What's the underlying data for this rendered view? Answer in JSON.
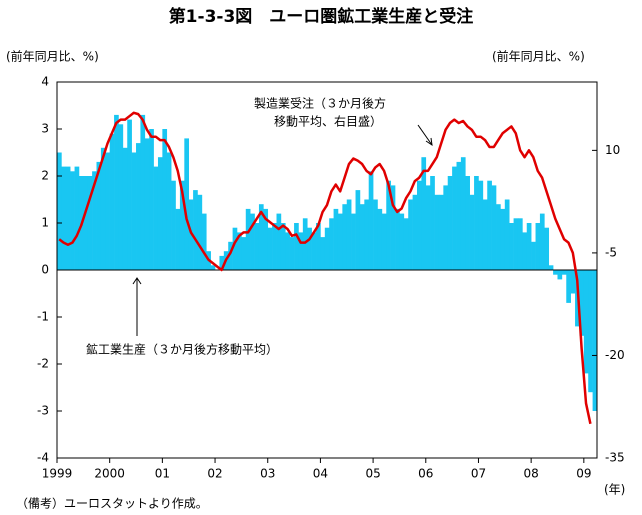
{
  "chart_data": {
    "type": "bar_line",
    "title": "第1-3-3図　ユーロ圏鉱工業生産と受注",
    "y_label": "(前年同月比、%)",
    "y2_label": "(前年同月比、%)",
    "x_unit": "(年)",
    "note": "（備考）ユーロスタットより作成。",
    "annotations": [
      "製造業受注（３か月後方",
      "移動平均、右目盛）",
      "鉱工業生産（３か月後方移動平均）"
    ],
    "categories": [
      "1999",
      null,
      null,
      null,
      null,
      null,
      null,
      null,
      null,
      null,
      null,
      null,
      "2000",
      null,
      null,
      null,
      null,
      null,
      null,
      null,
      null,
      null,
      null,
      null,
      "01",
      null,
      null,
      null,
      null,
      null,
      null,
      null,
      null,
      null,
      null,
      null,
      "02",
      null,
      null,
      null,
      null,
      null,
      null,
      null,
      null,
      null,
      null,
      null,
      "03",
      null,
      null,
      null,
      null,
      null,
      null,
      null,
      null,
      null,
      null,
      null,
      "04",
      null,
      null,
      null,
      null,
      null,
      null,
      null,
      null,
      null,
      null,
      null,
      "05",
      null,
      null,
      null,
      null,
      null,
      null,
      null,
      null,
      null,
      null,
      null,
      "06",
      null,
      null,
      null,
      null,
      null,
      null,
      null,
      null,
      null,
      null,
      null,
      "07",
      null,
      null,
      null,
      null,
      null,
      null,
      null,
      null,
      null,
      null,
      null,
      "08",
      null,
      null,
      null,
      null,
      null,
      null,
      null,
      null,
      null,
      null,
      null,
      "09",
      null,
      null
    ],
    "ylim": [
      -4,
      4
    ],
    "yticks": [
      -4,
      -3,
      -2,
      -1,
      0,
      1,
      2,
      3,
      4
    ],
    "y2lim": [
      -35,
      20
    ],
    "y2ticks": [
      -35,
      -20,
      -5,
      10
    ],
    "series": [
      {
        "color": "#19c6f2",
        "values": [
          2.5,
          2.2,
          2.2,
          2.1,
          2.2,
          2.0,
          2.0,
          2.0,
          2.1,
          2.3,
          2.6,
          2.5,
          2.9,
          3.3,
          3.1,
          2.6,
          3.2,
          2.5,
          2.7,
          3.3,
          2.8,
          3.0,
          2.2,
          2.4,
          3.0,
          2.5,
          1.9,
          1.3,
          1.9,
          2.8,
          1.5,
          1.7,
          1.6,
          1.2,
          0.4,
          0.1,
          0.0,
          0.3,
          0.4,
          0.6,
          0.9,
          0.8,
          0.7,
          1.3,
          1.2,
          1.0,
          1.4,
          1.3,
          0.9,
          1.0,
          1.2,
          1.0,
          0.8,
          0.7,
          1.0,
          0.8,
          1.1,
          0.9,
          0.8,
          1.0,
          0.7,
          0.9,
          1.1,
          1.3,
          1.2,
          1.4,
          1.5,
          1.2,
          1.7,
          1.4,
          1.5,
          2.1,
          1.5,
          1.3,
          1.2,
          1.9,
          1.8,
          1.3,
          1.2,
          1.1,
          1.5,
          1.6,
          1.9,
          2.4,
          1.8,
          2.0,
          1.6,
          1.6,
          1.8,
          2.0,
          2.2,
          2.3,
          2.4,
          2.0,
          1.6,
          2.0,
          1.9,
          1.5,
          1.9,
          1.8,
          1.4,
          1.3,
          1.5,
          1.0,
          1.1,
          1.1,
          0.8,
          1.0,
          0.6,
          1.0,
          1.2,
          0.9,
          0.1,
          -0.1,
          -0.2,
          -0.1,
          -0.7,
          -0.5,
          -1.2,
          -1.4,
          -2.2,
          -2.6,
          -3.0
        ]
      },
      {
        "color": "#e00000",
        "axis": "y2",
        "values": [
          -3,
          -3.5,
          -3.8,
          -3.5,
          -2.5,
          -1,
          1,
          3,
          5,
          7,
          9,
          11,
          12.5,
          14,
          14.5,
          14.5,
          15,
          15.5,
          15.3,
          14.5,
          13,
          12,
          12,
          11.5,
          11.5,
          10.5,
          9,
          7,
          4,
          0,
          -2,
          -3,
          -4,
          -5,
          -6,
          -6.5,
          -7,
          -7.5,
          -6,
          -5,
          -3.5,
          -2.5,
          -2,
          -2,
          -1,
          0,
          1,
          0,
          -0.5,
          -1,
          -1.5,
          -1,
          -1.5,
          -2.5,
          -2.3,
          -3.5,
          -3.5,
          -3,
          -2,
          -1,
          1,
          2,
          4,
          5,
          4,
          6,
          8,
          8.8,
          8.5,
          8,
          7,
          6.5,
          7.5,
          8,
          7,
          5,
          2,
          1,
          1.5,
          3,
          4,
          5.5,
          6,
          7,
          7,
          8,
          9,
          11,
          13,
          14,
          14.5,
          14,
          14.3,
          13.5,
          13,
          12,
          12,
          11.5,
          10.5,
          10.5,
          11.5,
          12.5,
          13,
          13.5,
          12.5,
          10,
          9,
          10,
          9,
          7,
          6,
          4,
          2,
          0,
          -1.5,
          -3,
          -3.5,
          -5,
          -9,
          -19,
          -27,
          -30,
          null
        ]
      }
    ]
  }
}
